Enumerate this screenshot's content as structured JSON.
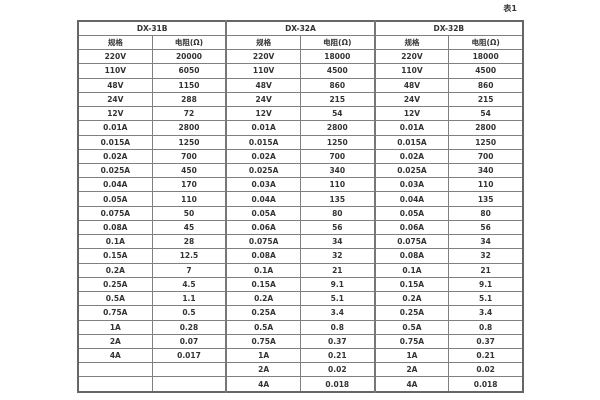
{
  "caption": "表1",
  "table": {
    "groups": [
      {
        "name": "DX-31B",
        "col_headers": [
          "规格",
          "电阻(Ω)"
        ]
      },
      {
        "name": "DX-32A",
        "col_headers": [
          "规格",
          "电阻(Ω)"
        ]
      },
      {
        "name": "DX-32B",
        "col_headers": [
          "规格",
          "电阻(Ω)"
        ]
      }
    ],
    "rows": [
      [
        "220V",
        "20000",
        "220V",
        "18000",
        "220V",
        "18000"
      ],
      [
        "110V",
        "6050",
        "110V",
        "4500",
        "110V",
        "4500"
      ],
      [
        "48V",
        "1150",
        "48V",
        "860",
        "48V",
        "860"
      ],
      [
        "24V",
        "288",
        "24V",
        "215",
        "24V",
        "215"
      ],
      [
        "12V",
        "72",
        "12V",
        "54",
        "12V",
        "54"
      ],
      [
        "0.01A",
        "2800",
        "0.01A",
        "2800",
        "0.01A",
        "2800"
      ],
      [
        "0.015A",
        "1250",
        "0.015A",
        "1250",
        "0.015A",
        "1250"
      ],
      [
        "0.02A",
        "700",
        "0.02A",
        "700",
        "0.02A",
        "700"
      ],
      [
        "0.025A",
        "450",
        "0.025A",
        "340",
        "0.025A",
        "340"
      ],
      [
        "0.04A",
        "170",
        "0.03A",
        "110",
        "0.03A",
        "110"
      ],
      [
        "0.05A",
        "110",
        "0.04A",
        "135",
        "0.04A",
        "135"
      ],
      [
        "0.075A",
        "50",
        "0.05A",
        "80",
        "0.05A",
        "80"
      ],
      [
        "0.08A",
        "45",
        "0.06A",
        "56",
        "0.06A",
        "56"
      ],
      [
        "0.1A",
        "28",
        "0.075A",
        "34",
        "0.075A",
        "34"
      ],
      [
        "0.15A",
        "12.5",
        "0.08A",
        "32",
        "0.08A",
        "32"
      ],
      [
        "0.2A",
        "7",
        "0.1A",
        "21",
        "0.1A",
        "21"
      ],
      [
        "0.25A",
        "4.5",
        "0.15A",
        "9.1",
        "0.15A",
        "9.1"
      ],
      [
        "0.5A",
        "1.1",
        "0.2A",
        "5.1",
        "0.2A",
        "5.1"
      ],
      [
        "0.75A",
        "0.5",
        "0.25A",
        "3.4",
        "0.25A",
        "3.4"
      ],
      [
        "1A",
        "0.28",
        "0.5A",
        "0.8",
        "0.5A",
        "0.8"
      ],
      [
        "2A",
        "0.07",
        "0.75A",
        "0.37",
        "0.75A",
        "0.37"
      ],
      [
        "4A",
        "0.017",
        "1A",
        "0.21",
        "1A",
        "0.21"
      ],
      [
        "",
        "",
        "2A",
        "0.02",
        "2A",
        "0.02"
      ],
      [
        "",
        "",
        "4A",
        "0.018",
        "4A",
        "0.018"
      ]
    ]
  },
  "colors": {
    "border_inner": "#808080",
    "border_outer": "#666666",
    "text": "#333333",
    "background": "#ffffff"
  }
}
